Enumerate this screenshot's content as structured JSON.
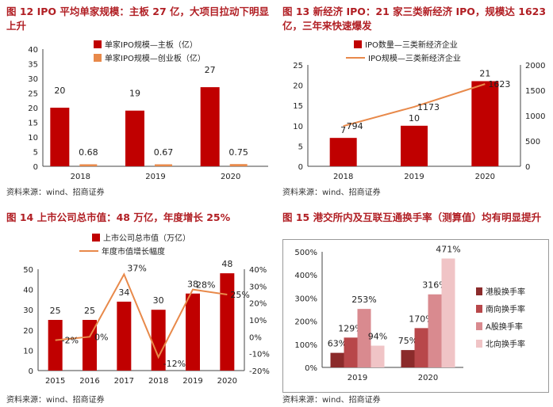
{
  "source": "资料来源：wind、招商证券",
  "chart_data": [
    {
      "type": "bar",
      "title": "图 12 IPO 平均单家规模：主板 27 亿，大项目拉动下明显上升",
      "categories": [
        "2018",
        "2019",
        "2020"
      ],
      "series": [
        {
          "name": "单家IPO规模—主板（亿）",
          "values": [
            20,
            19,
            27
          ],
          "labels": [
            "20",
            "19",
            "27"
          ],
          "color": "#c00000"
        },
        {
          "name": "单家IPO规模—创业板（亿）",
          "values": [
            0.68,
            0.67,
            0.75
          ],
          "labels": [
            "0.68",
            "0.67",
            "0.75"
          ],
          "color": "#e8894a"
        }
      ],
      "yticks": [
        "0",
        "5",
        "10",
        "15",
        "20",
        "25",
        "30",
        "35",
        "40"
      ],
      "ylim": [
        0,
        40
      ],
      "legend": "top-left",
      "grid": false
    },
    {
      "type": "bar",
      "title": "图 13 新经济 IPO：21 家三类新经济 IPO，规模达 1623 亿，三年来快速爆发",
      "categories": [
        "2018",
        "2019",
        "2020"
      ],
      "series": [
        {
          "name": "IPO数量—三类新经济企业",
          "values": [
            7,
            10,
            21
          ],
          "labels": [
            "7",
            "10",
            "21"
          ],
          "color": "#c00000",
          "axis": "left"
        },
        {
          "name": "IPO规模—三类新经济企业",
          "values": [
            794,
            1173,
            1623
          ],
          "labels": [
            "794",
            "1173",
            "1623"
          ],
          "color": "#e8894a",
          "axis": "right",
          "type": "line"
        }
      ],
      "yticks_left": [
        "0",
        "5",
        "10",
        "15",
        "20",
        "25"
      ],
      "yticks_right": [
        "0",
        "500",
        "1000",
        "1500",
        "2000"
      ],
      "ylim_left": [
        0,
        25
      ],
      "ylim_right": [
        0,
        2000
      ],
      "legend": "top",
      "grid": false
    },
    {
      "type": "bar",
      "title": "图 14 上市公司总市值：48 万亿，年度增长 25%",
      "categories": [
        "2015",
        "2016",
        "2017",
        "2018",
        "2019",
        "2020"
      ],
      "series": [
        {
          "name": "上市公司总市值（万亿）",
          "values": [
            25,
            25,
            34,
            30,
            38,
            48
          ],
          "labels": [
            "25",
            "25",
            "34",
            "30",
            "38",
            "48"
          ],
          "color": "#c00000",
          "axis": "left"
        },
        {
          "name": "年度市值增长幅度",
          "values": [
            -2,
            0,
            37,
            -12,
            28,
            25
          ],
          "labels": [
            "-2%",
            "0%",
            "37%",
            "-12%",
            "28%",
            "25%"
          ],
          "color": "#e8894a",
          "axis": "right",
          "type": "line"
        }
      ],
      "yticks_left": [
        "0",
        "10",
        "20",
        "30",
        "40",
        "50"
      ],
      "yticks_right": [
        "-20%",
        "-10%",
        "0%",
        "10%",
        "20%",
        "30%",
        "40%"
      ],
      "ylim_left": [
        0,
        50
      ],
      "ylim_right": [
        -20,
        40
      ],
      "legend": "top",
      "grid": false
    },
    {
      "type": "bar",
      "title": "图 15 港交所内及互联互通换手率（测算值）均有明显提升",
      "categories": [
        "2019",
        "2020"
      ],
      "series": [
        {
          "name": "港股换手率",
          "values": [
            63,
            75
          ],
          "labels": [
            "63%",
            "75%"
          ],
          "color": "#8b2b2b"
        },
        {
          "name": "南向换手率",
          "values": [
            129,
            170
          ],
          "labels": [
            "129%",
            "170%"
          ],
          "color": "#b8474a"
        },
        {
          "name": "A股换手率",
          "values": [
            253,
            316
          ],
          "labels": [
            "253%",
            "316%"
          ],
          "color": "#d98a8f"
        },
        {
          "name": "北向换手率",
          "values": [
            94,
            471
          ],
          "labels": [
            "94%",
            "471%"
          ],
          "color": "#f0c4c6"
        }
      ],
      "yticks": [
        "0%",
        "100%",
        "200%",
        "300%",
        "400%",
        "500%"
      ],
      "ylim": [
        0,
        500
      ],
      "legend": "right",
      "grid": false
    }
  ]
}
